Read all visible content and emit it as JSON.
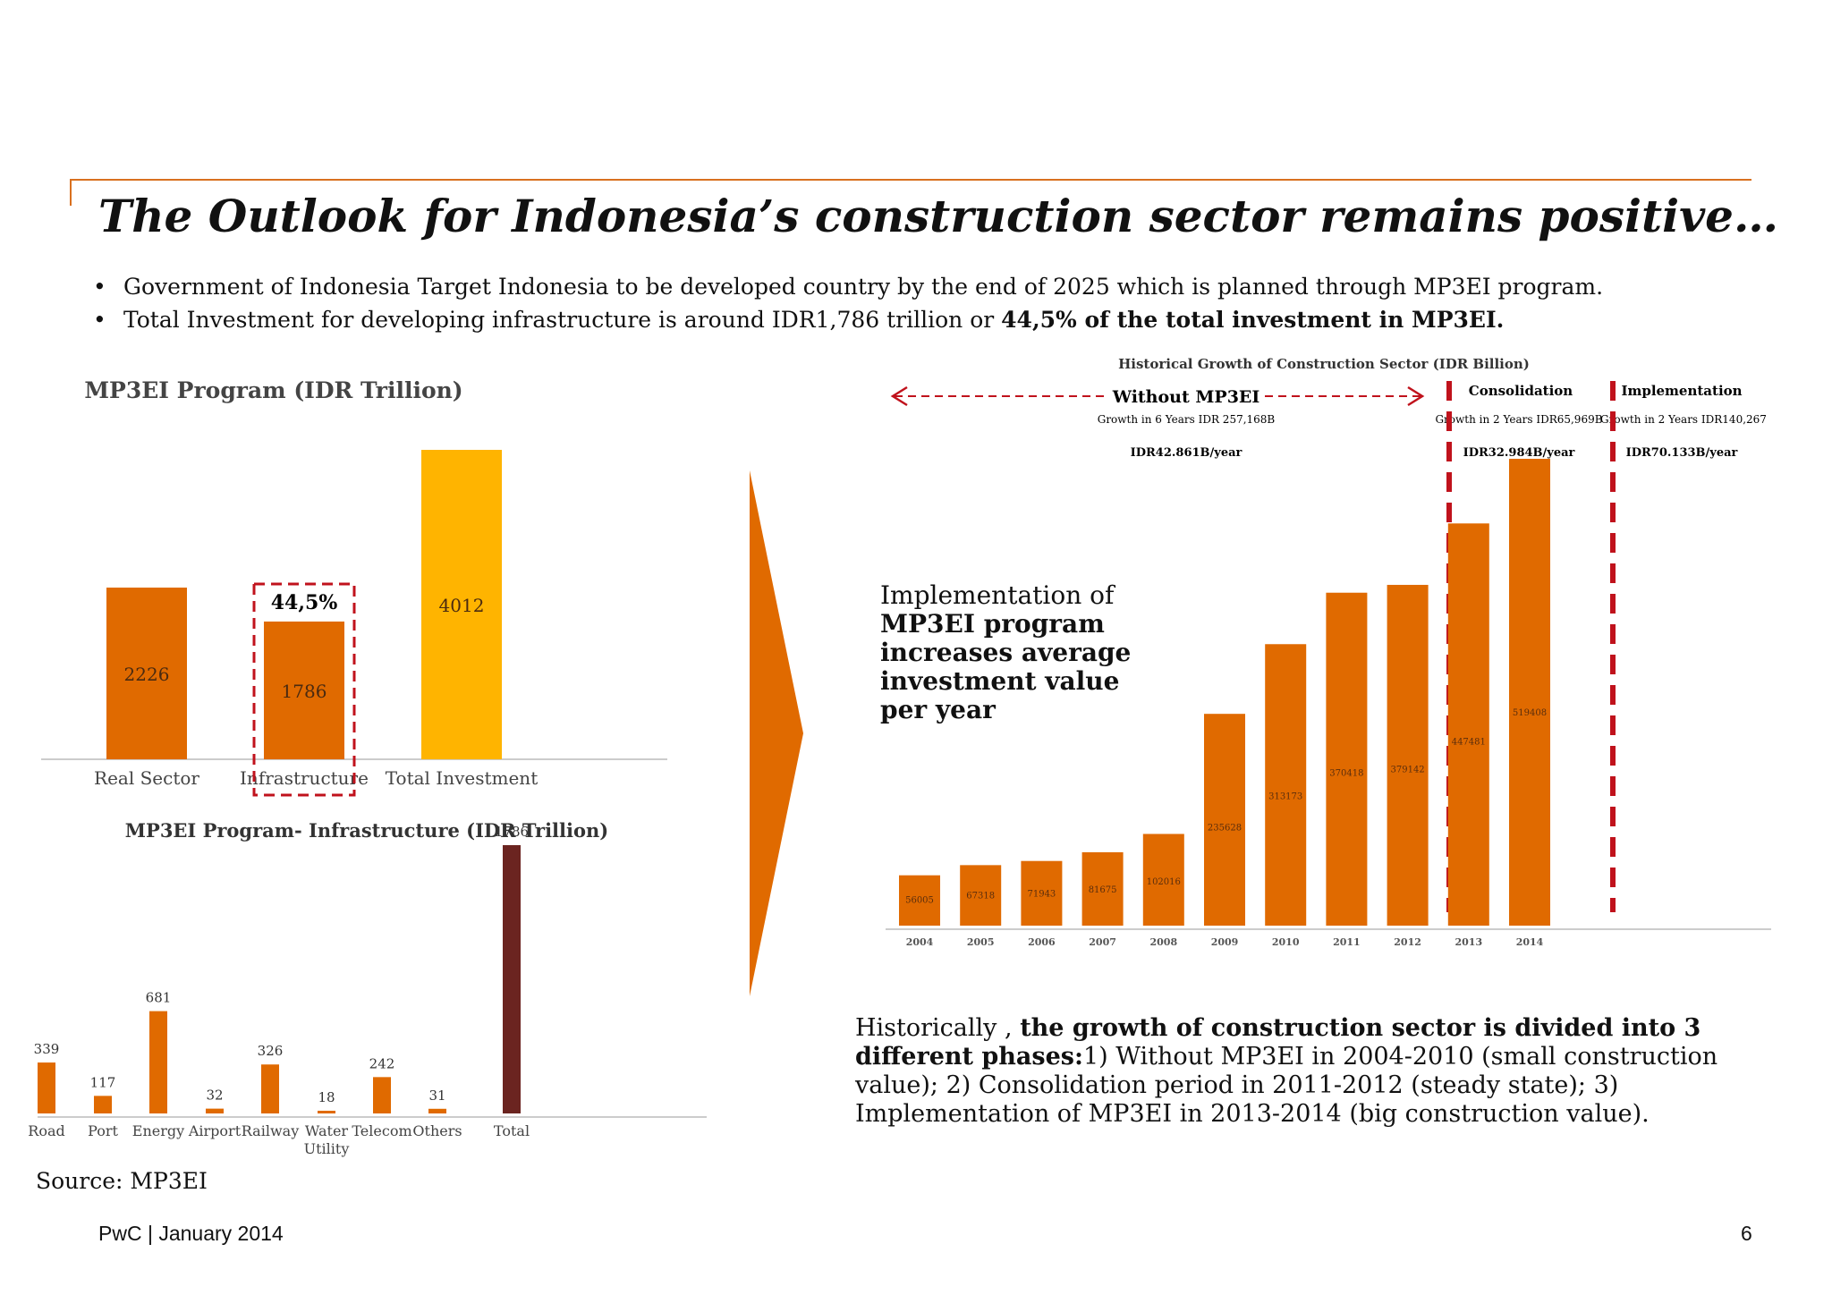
{
  "slide": {
    "title": "The Outlook for Indonesia’s construction sector remains positive…",
    "bullets": [
      {
        "text": "Government of Indonesia Target Indonesia to be developed country by the end of 2025 which is planned through MP3EI program.",
        "bold": ""
      },
      {
        "text": "Total Investment for developing infrastructure is around  IDR1,786 trillion or ",
        "bold": "44,5% of the total investment in MP3EI."
      }
    ],
    "bullet_symbol": "•",
    "source": "Source: MP3EI",
    "footer": "PwC  |  January 2014",
    "page_number": "6",
    "implementation_note": {
      "pre": "Implementation of ",
      "bold": "MP3EI program increases average investment value per year"
    },
    "historical_note": {
      "pre": "Historically , ",
      "bold": "the growth of construction sector is divided into 3 different phases:",
      "post": "1) Without MP3EI in 2004-2010 (small construction value); 2) Consolidation  period in 2011-2012 (steady state); 3) Implementation of MP3EI in 2013-2014 (big construction value)."
    }
  },
  "colors": {
    "accent": "#d9701f",
    "bar": "#e06a00",
    "total": "#ffb400",
    "dark": "#6b2420",
    "dashed": "#c0121c",
    "axis": "#cccccc"
  },
  "chart_data": [
    {
      "type": "bar",
      "title": "MP3EI Program (IDR Trillion)",
      "categories": [
        "Real Sector",
        "Infrastructure",
        "Total Investment"
      ],
      "values": [
        2226,
        1786,
        4012
      ],
      "value_labels": [
        "2226",
        "1786",
        "4012"
      ],
      "highlight": {
        "category": "Infrastructure",
        "label": "44,5%"
      },
      "ylim": [
        0,
        4012
      ]
    },
    {
      "type": "bar",
      "title": "MP3EI Program- Infrastructure (IDR Trillion)",
      "categories": [
        "Road",
        "Port",
        "Energy",
        "Airport",
        "Railway",
        "Water Utility",
        "Telecom",
        "Others",
        "Total"
      ],
      "category_lines": [
        [
          "Road"
        ],
        [
          "Port"
        ],
        [
          "Energy"
        ],
        [
          "Airport"
        ],
        [
          "Railway"
        ],
        [
          "Water",
          "Utility"
        ],
        [
          "Telecom"
        ],
        [
          "Others"
        ],
        [
          "Total"
        ]
      ],
      "values": [
        339,
        117,
        681,
        32,
        326,
        18,
        242,
        31,
        1786
      ],
      "value_labels": [
        "339",
        "117",
        "681",
        "32",
        "326",
        "18",
        "242",
        "31",
        "1786"
      ],
      "ylim": [
        0,
        1786
      ]
    },
    {
      "type": "bar",
      "title": "Historical Growth of Construction Sector (IDR Billion)",
      "categories": [
        "2004",
        "2005",
        "2006",
        "2007",
        "2008",
        "2009",
        "2010",
        "2011",
        "2012",
        "2013",
        "2014"
      ],
      "values": [
        56005,
        67318,
        71943,
        81675,
        102016,
        235628,
        313173,
        370418,
        379142,
        447481,
        519408
      ],
      "value_labels": [
        "56005",
        "67318",
        "71943",
        "81675",
        "102016",
        "235628",
        "313173",
        "370418",
        "379142",
        "447481",
        "519408"
      ],
      "ylim": [
        0,
        519408
      ],
      "phases": [
        {
          "name": "Without MP3EI",
          "growth": "Growth in 6 Years IDR 257,168B",
          "avg": "IDR42.861B/year"
        },
        {
          "name": "Consolidation",
          "growth": "Growth in 2 Years IDR65,969B",
          "avg": "IDR32.984B/year"
        },
        {
          "name": "Implementation",
          "growth": "Growth in 2 Years IDR140,267",
          "avg": "IDR70.133B/year"
        }
      ]
    }
  ]
}
